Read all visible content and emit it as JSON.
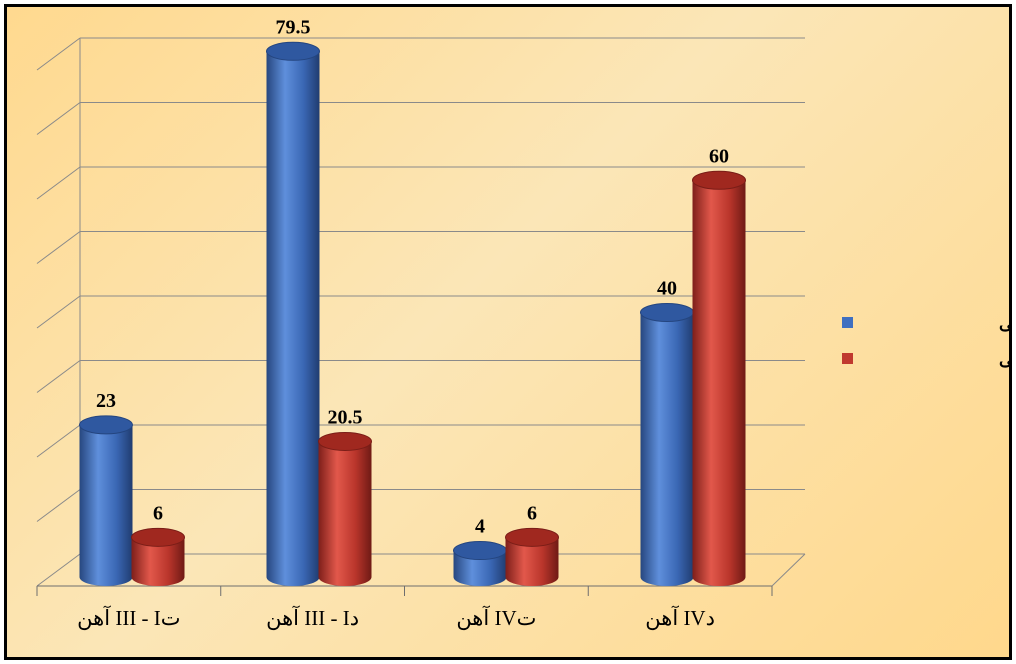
{
  "chart_data": {
    "type": "bar",
    "categories": [
      "آهن III - Iت",
      "آهن III - Iد",
      "آهن IVت",
      "آهن IVد"
    ],
    "series": [
      {
        "name": "دارای اشیاء تدفینی",
        "values": [
          23,
          79.5,
          4,
          40
        ],
        "labels": [
          "23",
          "79.5",
          "4",
          "40"
        ],
        "color": "#3f6fc0"
      },
      {
        "name": "بدون اشیاء تدفینی",
        "values": [
          6,
          20.5,
          6,
          60
        ],
        "labels": [
          "6",
          "20.5",
          "6",
          "60"
        ],
        "color": "#c0392f"
      }
    ],
    "ylim": [
      0,
      80
    ],
    "grid": true,
    "legend": "right",
    "style": "3d-cylinder"
  }
}
